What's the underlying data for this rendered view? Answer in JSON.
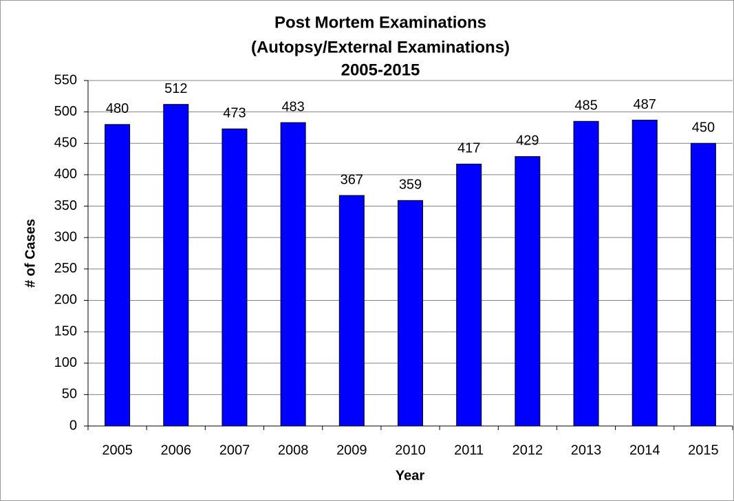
{
  "chart_data": {
    "type": "bar",
    "title": "Post Mortem Examinations",
    "subtitle": [
      "(Autopsy/External Examinations)",
      "2005-2015"
    ],
    "x_label": "Year",
    "y_label": "# of Cases",
    "categories": [
      "2005",
      "2006",
      "2007",
      "2008",
      "2009",
      "2010",
      "2011",
      "2012",
      "2013",
      "2014",
      "2015"
    ],
    "values": [
      480,
      512,
      473,
      483,
      367,
      359,
      417,
      429,
      485,
      487,
      450
    ],
    "color": "#0000ff",
    "ylim": [
      0,
      550
    ],
    "yticks": [
      0,
      50,
      100,
      150,
      200,
      250,
      300,
      350,
      400,
      450,
      500,
      550
    ],
    "grid": true
  }
}
